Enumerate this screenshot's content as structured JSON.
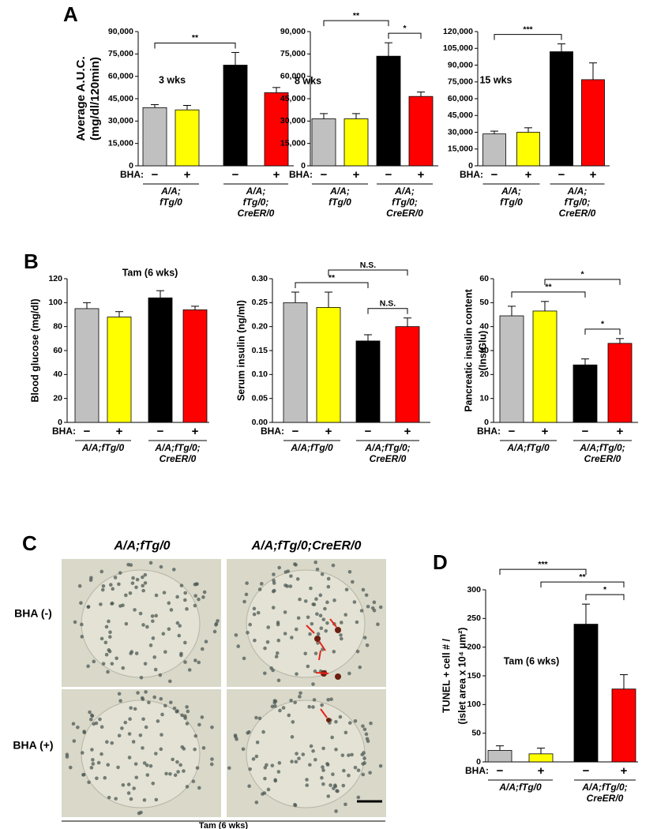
{
  "panel_labels": [
    "A",
    "B",
    "C",
    "D"
  ],
  "chart_data": [
    {
      "type": "bar",
      "annotation": "3 wks",
      "ylabel": [
        "Average A.U.C.",
        "(mg/dl/120min)"
      ],
      "x_label": "BHA:",
      "categories": [
        "−",
        "+",
        "−",
        "+"
      ],
      "values": [
        39000,
        37500,
        67500,
        49000
      ],
      "errors": [
        2000,
        3000,
        8500,
        3500
      ],
      "colors": [
        "#c0c0c0",
        "#ffff00",
        "#000000",
        "#ff0000"
      ],
      "groups": [
        [
          "A/A;",
          "fTg/0"
        ],
        [
          "A/A;",
          "fTg/0;",
          "CreER/0"
        ]
      ],
      "significance": [
        {
          "label": "**",
          "between": [
            0,
            2
          ]
        }
      ],
      "ylim": [
        0,
        90000
      ],
      "yticks": [
        0,
        {
          "value": 15000,
          "label": "15,000"
        },
        {
          "value": 30000,
          "label": "30,000"
        },
        {
          "value": 45000,
          "label": "45,000"
        },
        {
          "value": 60000,
          "label": "60,000"
        },
        {
          "value": 75000,
          "label": "75,000"
        },
        {
          "value": 90000,
          "label": "90,000"
        }
      ]
    },
    {
      "type": "bar",
      "annotation": "8 wks",
      "x_label": "BHA:",
      "categories": [
        "−",
        "+",
        "−",
        "+"
      ],
      "values": [
        31500,
        31500,
        73500,
        46500
      ],
      "errors": [
        3500,
        3500,
        9000,
        3000
      ],
      "colors": [
        "#c0c0c0",
        "#ffff00",
        "#000000",
        "#ff0000"
      ],
      "groups": [
        [
          "A/A;",
          "fTg/0"
        ],
        [
          "A/A;",
          "fTg/0;",
          "CreER/0"
        ]
      ],
      "significance": [
        {
          "label": "*",
          "between": [
            2,
            3
          ]
        },
        {
          "label": "**",
          "between": [
            0,
            2
          ]
        }
      ],
      "ylim": [
        0,
        90000
      ],
      "yticks": [
        0,
        {
          "value": 15000,
          "label": "15,000"
        },
        {
          "value": 30000,
          "label": "30,000"
        },
        {
          "value": 45000,
          "label": "45,000"
        },
        {
          "value": 60000,
          "label": "60,000"
        },
        {
          "value": 75000,
          "label": "75,000"
        },
        {
          "value": 90000,
          "label": "90,000"
        }
      ]
    },
    {
      "type": "bar",
      "annotation": "15 wks",
      "x_label": "BHA:",
      "categories": [
        "−",
        "+",
        "−",
        "+"
      ],
      "values": [
        28500,
        30000,
        102000,
        77000
      ],
      "errors": [
        2500,
        4000,
        7000,
        15000
      ],
      "colors": [
        "#c0c0c0",
        "#ffff00",
        "#000000",
        "#ff0000"
      ],
      "groups": [
        [
          "A/A;",
          "fTg/0"
        ],
        [
          "A/A;",
          "fTg/0;",
          "CreER/0"
        ]
      ],
      "significance": [
        {
          "label": "***",
          "between": [
            0,
            2
          ]
        }
      ],
      "ylim": [
        0,
        120000
      ],
      "yticks": [
        0,
        {
          "value": 15000,
          "label": "15,000"
        },
        {
          "value": 30000,
          "label": "30,000"
        },
        {
          "value": 45000,
          "label": "45,000"
        },
        {
          "value": 60000,
          "label": "60,000"
        },
        {
          "value": 75000,
          "label": "75,000"
        },
        {
          "value": 90000,
          "label": "90,000"
        },
        {
          "value": 105000,
          "label": "105,000"
        },
        {
          "value": 120000,
          "label": "120,000"
        }
      ]
    },
    {
      "type": "bar",
      "annotation": "Tam (6 wks)",
      "ylabel": [
        "Blood glucose (mg/dl)"
      ],
      "x_label": "BHA:",
      "categories": [
        "−",
        "+",
        "−",
        "+"
      ],
      "values": [
        95,
        88,
        104,
        94
      ],
      "errors": [
        5,
        4.5,
        6,
        3
      ],
      "colors": [
        "#c0c0c0",
        "#ffff00",
        "#000000",
        "#ff0000"
      ],
      "groups": [
        [
          "A/A;fTg/0"
        ],
        [
          "A/A;fTg/0;",
          "CreER/0"
        ]
      ],
      "significance": [],
      "ylim": [
        0,
        120
      ],
      "yticks": [
        0,
        20,
        40,
        60,
        80,
        100,
        120
      ]
    },
    {
      "type": "bar",
      "ylabel": [
        "Serum insulin (ng/ml)"
      ],
      "x_label": "BHA:",
      "categories": [
        "−",
        "+",
        "−",
        "+"
      ],
      "values": [
        0.25,
        0.24,
        0.17,
        0.2
      ],
      "errors": [
        0.022,
        0.032,
        0.013,
        0.018
      ],
      "colors": [
        "#c0c0c0",
        "#ffff00",
        "#000000",
        "#ff0000"
      ],
      "groups": [
        [
          "A/A;fTg/0"
        ],
        [
          "A/A;fTg/0;",
          "CreER/0"
        ]
      ],
      "significance": [
        {
          "label": "N.S.",
          "between": [
            2,
            3
          ]
        },
        {
          "label": "**",
          "between": [
            0,
            2
          ]
        },
        {
          "label": "N.S.",
          "between": [
            1,
            3
          ]
        }
      ],
      "ylim": [
        0,
        0.3
      ],
      "yticks": [
        {
          "value": 0,
          "label": "0.00"
        },
        {
          "value": 0.05,
          "label": "0.05"
        },
        {
          "value": 0.1,
          "label": "0.10"
        },
        {
          "value": 0.15,
          "label": "0.15"
        },
        {
          "value": 0.2,
          "label": "0.20"
        },
        {
          "value": 0.25,
          "label": "0.25"
        },
        {
          "value": 0.3,
          "label": "0.30"
        }
      ]
    },
    {
      "type": "bar",
      "ylabel": [
        "Pancreatic insulin content",
        "(Ins/Glu)"
      ],
      "x_label": "BHA:",
      "categories": [
        "−",
        "+",
        "−",
        "+"
      ],
      "values": [
        44.5,
        46.5,
        24,
        33
      ],
      "errors": [
        4,
        4,
        2.5,
        2
      ],
      "colors": [
        "#c0c0c0",
        "#ffff00",
        "#000000",
        "#ff0000"
      ],
      "groups": [
        [
          "A/A;fTg/0"
        ],
        [
          "A/A;fTg/0;",
          "CreER/0"
        ]
      ],
      "significance": [
        {
          "label": "*",
          "between": [
            2,
            3
          ]
        },
        {
          "label": "**",
          "between": [
            0,
            2
          ]
        },
        {
          "label": "*",
          "between": [
            1,
            3
          ]
        }
      ],
      "ylim": [
        0,
        60
      ],
      "yticks": [
        0,
        10,
        20,
        30,
        40,
        50,
        60
      ]
    },
    {
      "type": "bar",
      "annotation": "Tam (6 wks)",
      "ylabel": [
        "TUNEL + cell # /",
        "(islet area x 10⁴ μm²)"
      ],
      "x_label": "BHA:",
      "categories": [
        "−",
        "+",
        "−",
        "+"
      ],
      "values": [
        20,
        14,
        240,
        127
      ],
      "errors": [
        8,
        10,
        35,
        25
      ],
      "colors": [
        "#c0c0c0",
        "#ffff00",
        "#000000",
        "#ff0000"
      ],
      "groups": [
        [
          "A/A;fTg/0"
        ],
        [
          "A/A;fTg/0;",
          "CreER/0"
        ]
      ],
      "significance": [
        {
          "label": "*",
          "between": [
            2,
            3
          ]
        },
        {
          "label": "**",
          "between": [
            1,
            3
          ]
        },
        {
          "label": "***",
          "between": [
            0,
            2
          ]
        }
      ],
      "ylim": [
        0,
        300
      ],
      "yticks": [
        0,
        50,
        100,
        150,
        200,
        250,
        300
      ]
    }
  ],
  "micrographs": {
    "columns": [
      "A/A;fTg/0",
      "A/A;fTg/0;CreER/0"
    ],
    "rows": [
      "BHA (-)",
      "BHA (+)"
    ],
    "caption": "Tam (6 wks)"
  }
}
